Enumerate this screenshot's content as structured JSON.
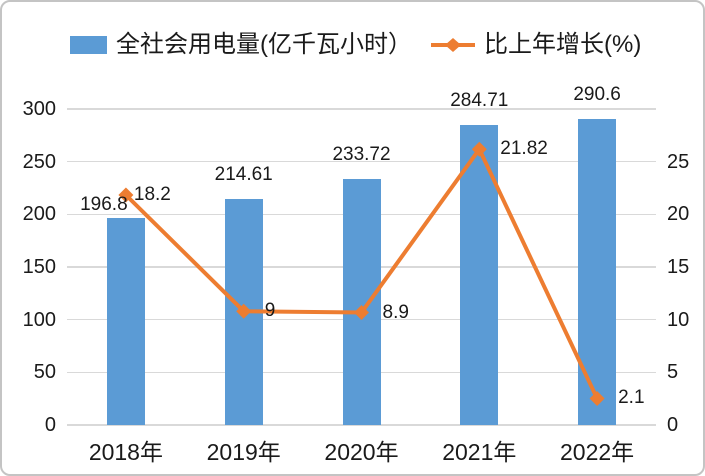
{
  "legend": {
    "items": [
      {
        "label": "全社会用电量(亿千瓦小时）",
        "marker": "bar-swatch",
        "color": "#5B9BD5"
      },
      {
        "label": "比上年增长(%)",
        "marker": "line-diamond",
        "color": "#ED7D31"
      }
    ]
  },
  "colors": {
    "bar": "#5B9BD5",
    "line": "#ED7D31",
    "grid": "#D9D9D9",
    "border": "#C4C4C4",
    "text": "#1A1A1A",
    "background": "#FFFFFF"
  },
  "chart_data": {
    "type": "combo-bar-line",
    "categories": [
      "2018年",
      "2019年",
      "2020年",
      "2021年",
      "2022年"
    ],
    "series": [
      {
        "name": "全社会用电量(亿千瓦小时）",
        "type": "bar",
        "axis": "left",
        "color": "#5B9BD5",
        "values": [
          196.8,
          214.61,
          233.72,
          284.71,
          290.6
        ],
        "labels": [
          "196.8",
          "214.61",
          "233.72",
          "284.71",
          "290.6"
        ]
      },
      {
        "name": "比上年增长(%)",
        "type": "line",
        "axis": "right",
        "color": "#ED7D31",
        "marker": "diamond",
        "values": [
          18.2,
          9,
          8.9,
          21.82,
          2.1
        ],
        "labels": [
          "18.2",
          "9",
          "8.9",
          "21.82",
          "2.1"
        ]
      }
    ],
    "left_axis": {
      "min": 0,
      "max": 300,
      "step": 50,
      "ticks": [
        "0",
        "50",
        "100",
        "150",
        "200",
        "250",
        "300"
      ]
    },
    "right_axis": {
      "min": 0,
      "max": 25,
      "step": 5,
      "ticks": [
        "0",
        "5",
        "10",
        "15",
        "20",
        "25"
      ]
    },
    "grid": "horizontal-only",
    "legend_position": "top",
    "title": "",
    "xlabel": "",
    "ylabel": ""
  }
}
